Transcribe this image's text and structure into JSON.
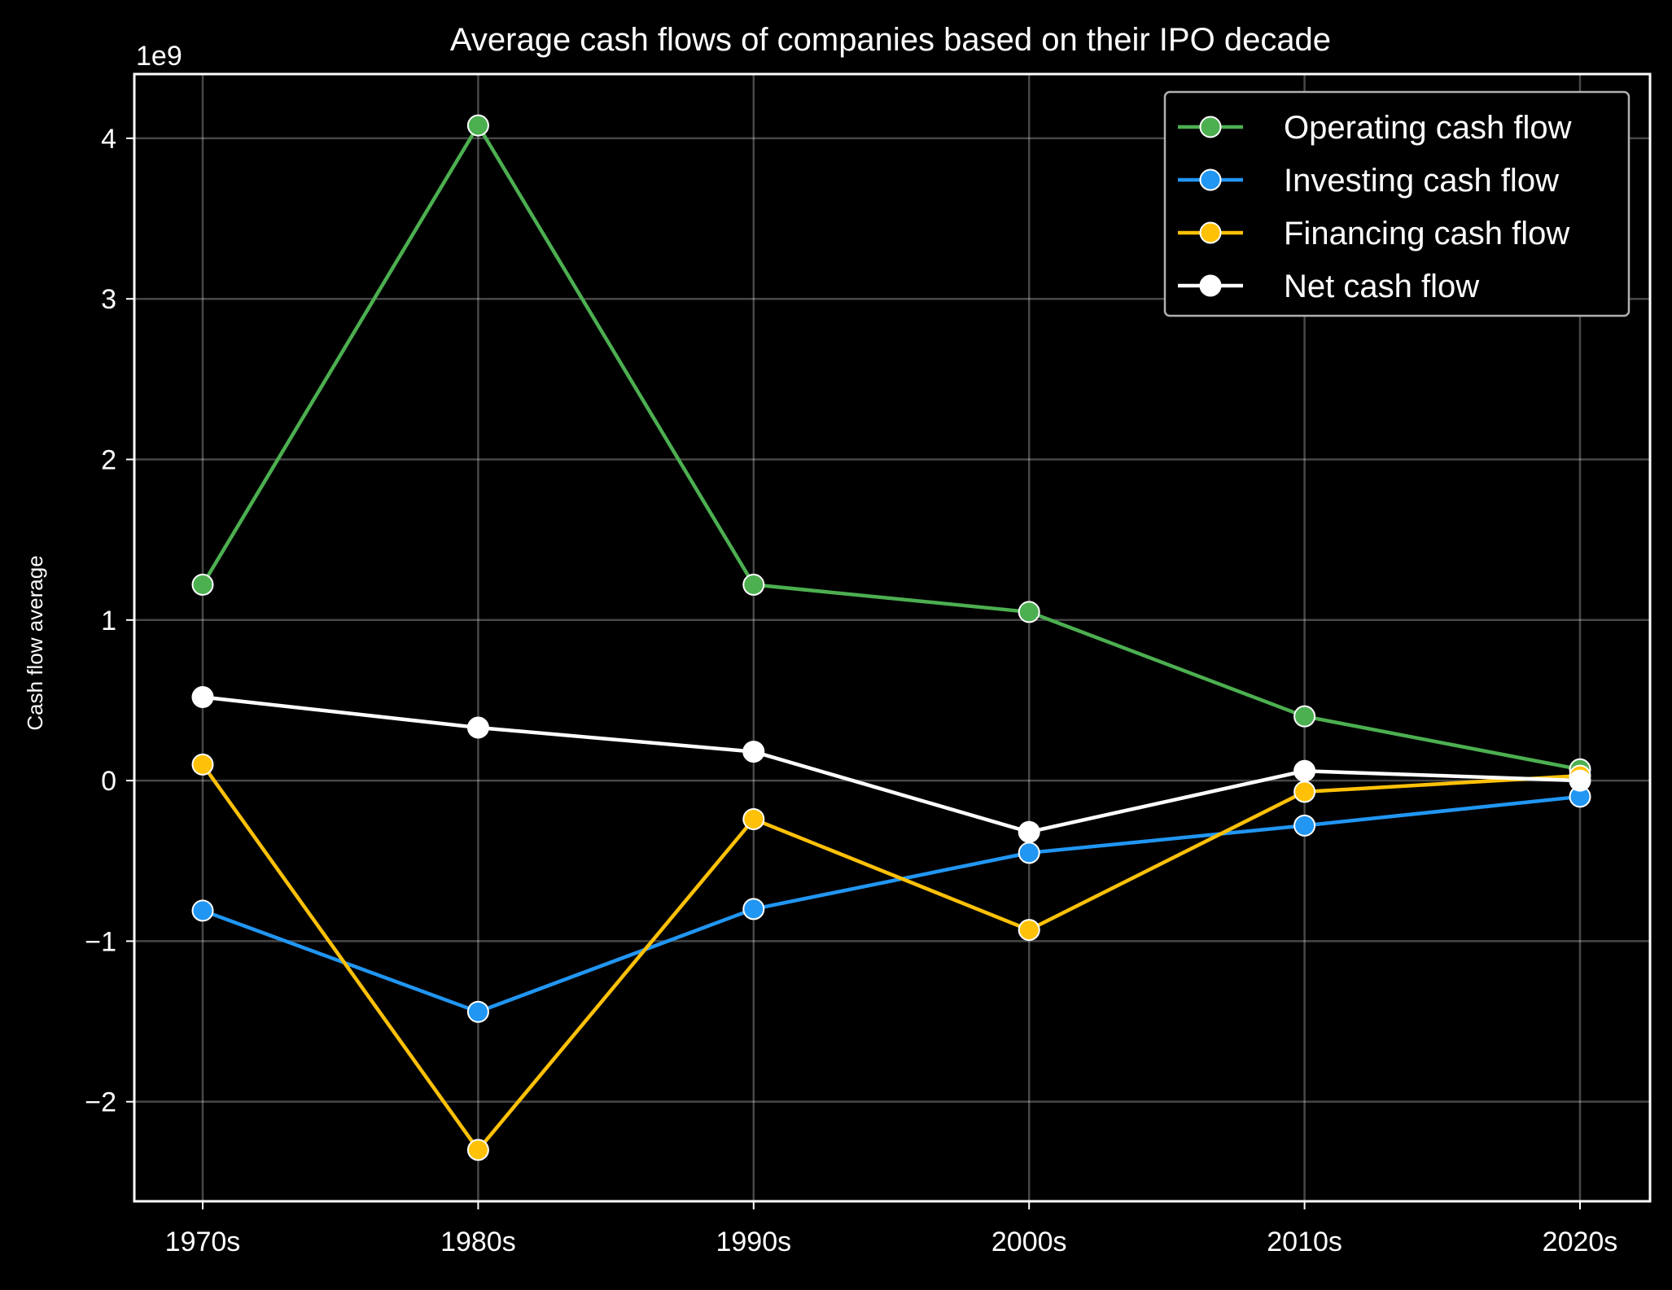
{
  "chart_data": {
    "type": "line",
    "title": "Average cash flows of companies based on their IPO decade",
    "xlabel": "",
    "ylabel": "Cash flow average",
    "y_offset_label": "1e9",
    "categories": [
      "1970s",
      "1980s",
      "1990s",
      "2000s",
      "2010s",
      "2020s"
    ],
    "ylim": [
      -2.62,
      4.4
    ],
    "yticks": [
      -2,
      -1,
      0,
      1,
      2,
      3,
      4
    ],
    "ytick_labels": [
      "−2",
      "−1",
      "0",
      "1",
      "2",
      "3",
      "4"
    ],
    "grid": true,
    "legend_position": "upper right",
    "series": [
      {
        "name": "Operating cash flow",
        "color": "#4caf50",
        "values": [
          1.22,
          4.08,
          1.22,
          1.05,
          0.4,
          0.07
        ]
      },
      {
        "name": "Investing cash flow",
        "color": "#2196f3",
        "values": [
          -0.81,
          -1.44,
          -0.8,
          -0.45,
          -0.28,
          -0.1
        ]
      },
      {
        "name": "Financing cash flow",
        "color": "#ffc107",
        "values": [
          0.1,
          -2.3,
          -0.24,
          -0.93,
          -0.07,
          0.03
        ]
      },
      {
        "name": "Net cash flow",
        "color": "#ffffff",
        "values": [
          0.52,
          0.33,
          0.18,
          -0.32,
          0.06,
          0.0
        ]
      }
    ]
  }
}
